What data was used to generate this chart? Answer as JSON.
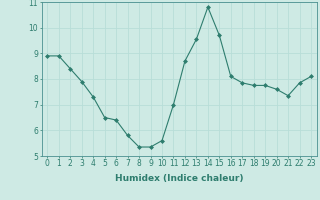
{
  "x": [
    0,
    1,
    2,
    3,
    4,
    5,
    6,
    7,
    8,
    9,
    10,
    11,
    12,
    13,
    14,
    15,
    16,
    17,
    18,
    19,
    20,
    21,
    22,
    23
  ],
  "y": [
    8.9,
    8.9,
    8.4,
    7.9,
    7.3,
    6.5,
    6.4,
    5.8,
    5.35,
    5.35,
    5.6,
    7.0,
    8.7,
    9.55,
    10.8,
    9.7,
    8.1,
    7.85,
    7.75,
    7.75,
    7.6,
    7.35,
    7.85,
    8.1
  ],
  "line_color": "#2e7d6e",
  "marker": "D",
  "markersize": 2.0,
  "linewidth": 0.8,
  "xlabel": "Humidex (Indice chaleur)",
  "xlabel_fontsize": 6.5,
  "ylim": [
    5,
    11
  ],
  "xlim": [
    -0.5,
    23.5
  ],
  "yticks": [
    5,
    6,
    7,
    8,
    9,
    10,
    11
  ],
  "xticks": [
    0,
    1,
    2,
    3,
    4,
    5,
    6,
    7,
    8,
    9,
    10,
    11,
    12,
    13,
    14,
    15,
    16,
    17,
    18,
    19,
    20,
    21,
    22,
    23
  ],
  "grid_color": "#b8ddd8",
  "bg_color": "#ceeae4",
  "tick_fontsize": 5.5,
  "spine_color": "#4a9090"
}
